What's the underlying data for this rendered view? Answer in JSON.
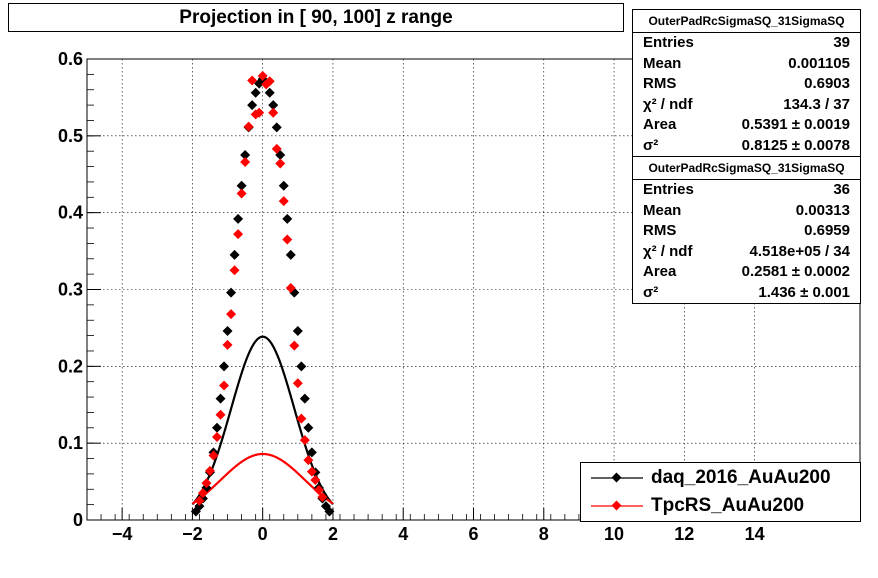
{
  "title": "Projection in [  90, 100] z range",
  "stats": [
    {
      "header": "OuterPadRcSigmaSQ_31SigmaSQ",
      "rows": [
        {
          "k": "Entries",
          "v": "39"
        },
        {
          "k": "Mean",
          "v": "0.001105"
        },
        {
          "k": "RMS",
          "v": "0.6903"
        },
        {
          "k": "χ² / ndf",
          "v": "134.3 / 37"
        },
        {
          "k": "Area",
          "v": "0.5391 ± 0.0019"
        },
        {
          "k": "σ²",
          "v": "0.8125 ± 0.0078"
        }
      ]
    },
    {
      "header": "OuterPadRcSigmaSQ_31SigmaSQ",
      "rows": [
        {
          "k": "Entries",
          "v": "36"
        },
        {
          "k": "Mean",
          "v": "0.00313"
        },
        {
          "k": "RMS",
          "v": "0.6959"
        },
        {
          "k": "χ² / ndf",
          "v": "4.518e+05 / 34"
        },
        {
          "k": "Area",
          "v": "0.2581 ± 0.0002"
        },
        {
          "k": "σ²",
          "v": "1.436 ± 0.001"
        }
      ]
    }
  ],
  "legend": [
    {
      "label": "daq_2016_AuAu200",
      "color": "#000000"
    },
    {
      "label": "TpcRS_AuAu200",
      "color": "#ff0000"
    }
  ],
  "chart_data": {
    "type": "scatter",
    "title": "Projection in [  90, 100] z range",
    "xlim": [
      -5,
      17
    ],
    "ylim": [
      0,
      0.6
    ],
    "grid": true,
    "x_ticks": [
      -4,
      -2,
      0,
      2,
      4,
      6,
      8,
      10,
      12,
      14
    ],
    "x_tick_labels": [
      "−4",
      "−2",
      "0",
      "2",
      "4",
      "6",
      "8",
      "10",
      "12",
      "14"
    ],
    "y_ticks": [
      0,
      0.1,
      0.2,
      0.3,
      0.4,
      0.5,
      0.6
    ],
    "y_tick_labels": [
      "0",
      "0.1",
      "0.2",
      "0.3",
      "0.4",
      "0.5",
      "0.6"
    ],
    "legend_position": "bottom-right",
    "series": [
      {
        "name": "daq_2016_AuAu200",
        "color": "#000000",
        "x": [
          -1.9,
          -1.8,
          -1.7,
          -1.6,
          -1.5,
          -1.4,
          -1.3,
          -1.2,
          -1.1,
          -1.0,
          -0.9,
          -0.8,
          -0.7,
          -0.6,
          -0.5,
          -0.4,
          -0.3,
          -0.2,
          -0.1,
          0.0,
          0.1,
          0.2,
          0.3,
          0.4,
          0.5,
          0.6,
          0.7,
          0.8,
          0.9,
          1.0,
          1.1,
          1.2,
          1.3,
          1.4,
          1.5,
          1.6,
          1.7,
          1.8,
          1.9
        ],
        "y": [
          0.011,
          0.018,
          0.028,
          0.042,
          0.062,
          0.088,
          0.12,
          0.158,
          0.2,
          0.246,
          0.296,
          0.345,
          0.392,
          0.435,
          0.475,
          0.511,
          0.54,
          0.556,
          0.568,
          0.574,
          0.569,
          0.556,
          0.54,
          0.511,
          0.475,
          0.435,
          0.392,
          0.345,
          0.296,
          0.246,
          0.2,
          0.158,
          0.12,
          0.088,
          0.062,
          0.042,
          0.028,
          0.018,
          0.011
        ]
      },
      {
        "name": "TpcRS_AuAu200",
        "color": "#ff0000",
        "x": [
          -1.8,
          -1.7,
          -1.6,
          -1.5,
          -1.4,
          -1.3,
          -1.2,
          -1.1,
          -1.0,
          -0.9,
          -0.8,
          -0.7,
          -0.6,
          -0.5,
          -0.4,
          -0.3,
          -0.2,
          -0.1,
          0.0,
          0.1,
          0.2,
          0.3,
          0.4,
          0.5,
          0.6,
          0.7,
          0.8,
          0.9,
          1.0,
          1.1,
          1.2,
          1.3,
          1.4,
          1.5,
          1.6,
          1.7
        ],
        "y": [
          0.025,
          0.035,
          0.048,
          0.064,
          0.084,
          0.108,
          0.137,
          0.175,
          0.228,
          0.268,
          0.325,
          0.372,
          0.425,
          0.466,
          0.512,
          0.572,
          0.528,
          0.53,
          0.578,
          0.567,
          0.571,
          0.53,
          0.483,
          0.464,
          0.415,
          0.365,
          0.302,
          0.227,
          0.178,
          0.132,
          0.104,
          0.078,
          0.063,
          0.052,
          0.039,
          0.03
        ]
      }
    ],
    "fits": [
      {
        "name": "daq_2016_AuAu200",
        "color": "#000000",
        "area": 0.5391,
        "sigma2": 0.8125,
        "mean": 0.001105
      },
      {
        "name": "TpcRS_AuAu200",
        "color": "#ff0000",
        "area": 0.2581,
        "sigma2": 1.436,
        "mean": 0.00313
      }
    ]
  }
}
